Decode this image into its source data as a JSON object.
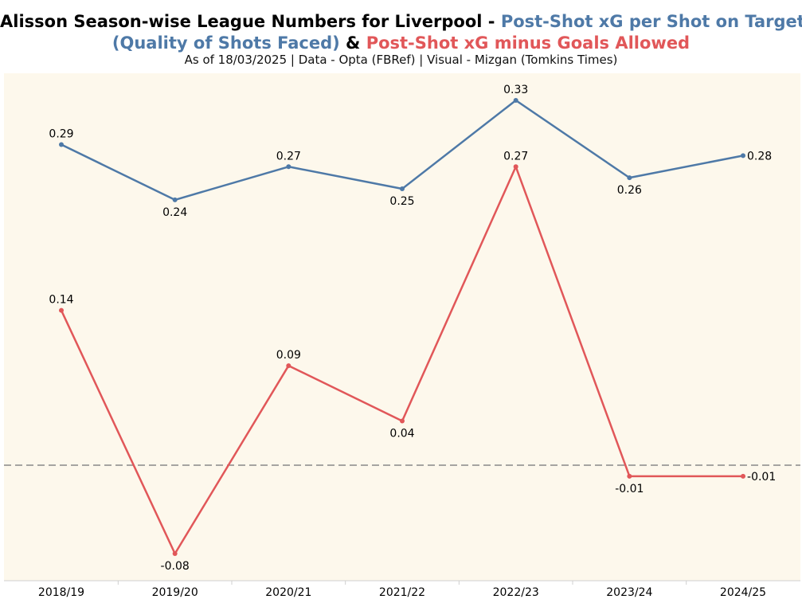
{
  "title": {
    "part1": "Alisson Season-wise League Numbers for Liverpool - ",
    "part2": "Post-Shot xG per Shot on Target",
    "part3": "(Quality of Shots Faced)",
    "part4": " & ",
    "part5": "Post-Shot xG minus Goals Allowed"
  },
  "subtitle": "As of 18/03/2025 | Data - Opta (FBRef) | Visual - Mizgan (Tomkins Times)",
  "colors": {
    "background": "#fdf8ec",
    "series_blue": "#4e79a7",
    "series_red": "#e15759",
    "zero_line": "#888888",
    "axis": "#cfcfcf"
  },
  "chart_data": {
    "type": "line",
    "categories": [
      "2018/19",
      "2019/20",
      "2020/21",
      "2021/22",
      "2022/23",
      "2023/24",
      "2024/25"
    ],
    "series": [
      {
        "name": "Post-Shot xG per Shot on Target",
        "color": "#4e79a7",
        "values": [
          0.29,
          0.24,
          0.27,
          0.25,
          0.33,
          0.26,
          0.28
        ],
        "labels": [
          "0.29",
          "0.24",
          "0.27",
          "0.25",
          "0.33",
          "0.26",
          "0.28"
        ]
      },
      {
        "name": "Post-Shot xG minus Goals Allowed",
        "color": "#e15759",
        "values": [
          0.14,
          -0.08,
          0.09,
          0.04,
          0.27,
          -0.01,
          -0.01
        ],
        "labels": [
          "0.14",
          "-0.08",
          "0.09",
          "0.04",
          "0.27",
          "-0.01",
          "-0.01"
        ]
      }
    ],
    "reference_line": 0,
    "grid": false,
    "legend": "none (series named in title)"
  }
}
